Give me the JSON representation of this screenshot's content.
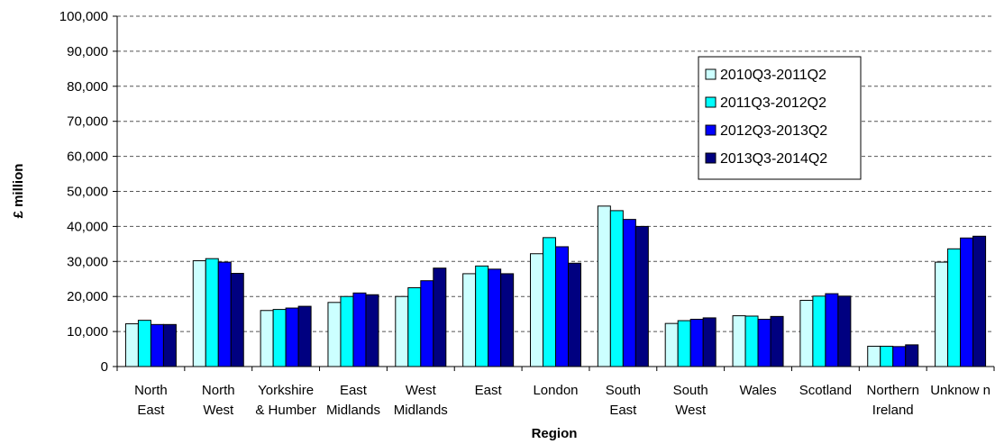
{
  "chart_data": {
    "type": "bar",
    "title": "",
    "xlabel": "Region",
    "ylabel": "£ million",
    "ylim": [
      0,
      100000
    ],
    "ytick_labels": [
      "0",
      "10,000",
      "20,000",
      "30,000",
      "40,000",
      "50,000",
      "60,000",
      "70,000",
      "80,000",
      "90,000",
      "100,000"
    ],
    "grid": "horizontal dashed",
    "legend_position": "top-right",
    "categories": [
      [
        "North",
        "East"
      ],
      [
        "North",
        "West"
      ],
      [
        "Yorkshire",
        "& Humber"
      ],
      [
        "East",
        "Midlands"
      ],
      [
        "West",
        "Midlands"
      ],
      [
        "East"
      ],
      [
        "London"
      ],
      [
        "South",
        "East"
      ],
      [
        "South",
        "West"
      ],
      [
        "Wales"
      ],
      [
        "Scotland"
      ],
      [
        "Northern",
        "Ireland"
      ],
      [
        "Unknow n"
      ]
    ],
    "series": [
      {
        "name": "2010Q3-2011Q2",
        "color": "#ccffff",
        "values": [
          12200,
          30200,
          16000,
          18300,
          20000,
          26500,
          32200,
          45800,
          12300,
          14500,
          18900,
          5800,
          29800
        ]
      },
      {
        "name": "2011Q3-2012Q2",
        "color": "#00ffff",
        "values": [
          13200,
          30800,
          16300,
          20000,
          22500,
          28700,
          36800,
          44500,
          13100,
          14400,
          20100,
          5800,
          33600
        ]
      },
      {
        "name": "2012Q3-2013Q2",
        "color": "#0000ff",
        "values": [
          12000,
          29800,
          16700,
          21000,
          24500,
          27800,
          34200,
          42000,
          13500,
          13500,
          20800,
          5700,
          36700
        ]
      },
      {
        "name": "2013Q3-2014Q2",
        "color": "#000080",
        "values": [
          12000,
          26600,
          17200,
          20500,
          28100,
          26500,
          29500,
          40000,
          13900,
          14300,
          20100,
          6200,
          37200
        ]
      }
    ]
  }
}
